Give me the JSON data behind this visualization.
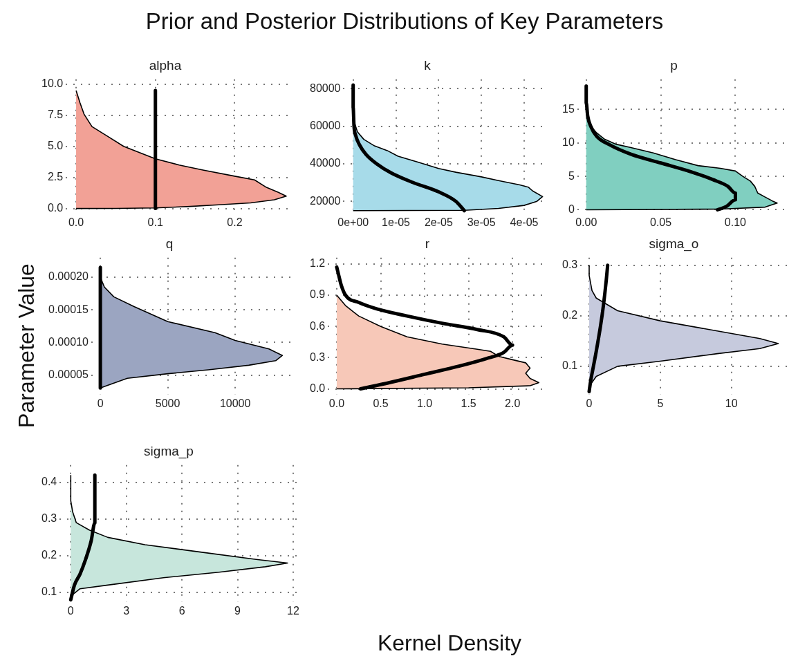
{
  "chart_data": [
    {
      "type": "other",
      "title": "Prior and Posterior Distributions of Key Parameters",
      "xlabel": "Kernel Density",
      "ylabel": "Parameter Value"
    },
    {
      "type": "area",
      "title": "alpha",
      "grid": true,
      "xlim": [
        -0.013,
        0.272
      ],
      "ylim": [
        -0.4,
        10.4
      ],
      "xticks": [
        {
          "value": 0,
          "label": "0.0"
        },
        {
          "value": 0.1,
          "label": "0.1"
        },
        {
          "value": 0.2,
          "label": "0.2"
        }
      ],
      "yticks": [
        {
          "value": 0,
          "label": "0.0"
        },
        {
          "value": 2.5,
          "label": "2.5"
        },
        {
          "value": 5,
          "label": "5.0"
        },
        {
          "value": 7.5,
          "label": "7.5"
        },
        {
          "value": 10,
          "label": "10.0"
        }
      ],
      "series": [
        {
          "type": "area",
          "color": "#f2a196",
          "x": [
            0,
            0.05,
            0.1,
            0.14,
            0.18,
            0.22,
            0.25,
            0.265,
            0.255,
            0.24,
            0.225,
            0.2,
            0.16,
            0.13,
            0.1,
            0.08,
            0.06,
            0.04,
            0.02,
            0.01,
            0.005,
            0
          ],
          "values": [
            0,
            0.01,
            0.05,
            0.15,
            0.3,
            0.45,
            0.7,
            1.0,
            1.3,
            1.7,
            2.3,
            2.6,
            3.1,
            3.5,
            4.0,
            4.5,
            5.0,
            5.8,
            6.6,
            7.6,
            8.5,
            9.5
          ]
        },
        {
          "type": "line",
          "color": "#000000",
          "x": [
            0.1,
            0.1
          ],
          "values": [
            0,
            9.5
          ]
        }
      ]
    },
    {
      "type": "area",
      "title": "k",
      "grid": true,
      "xlim": [
        -2.3e-06,
        4.55e-05
      ],
      "ylim": [
        13500,
        85000
      ],
      "xticks": [
        {
          "value": 0,
          "label": "0e+00"
        },
        {
          "value": 1e-05,
          "label": "1e-05"
        },
        {
          "value": 2e-05,
          "label": "2e-05"
        },
        {
          "value": 3e-05,
          "label": "3e-05"
        },
        {
          "value": 4e-05,
          "label": "4e-05"
        }
      ],
      "yticks": [
        20000,
        40000,
        60000,
        80000
      ],
      "series": [
        {
          "type": "area",
          "color": "#a7dbe9",
          "x": [
            0,
            2.6e-05,
            3.4e-05,
            4e-05,
            4.3e-05,
            4.43e-05,
            4.2e-05,
            4.1e-05,
            3.9e-05,
            3.4e-05,
            3e-05,
            2.4e-05,
            2e-05,
            1.5e-05,
            1.05e-05,
            8e-06,
            5e-06,
            2.5e-06,
            1e-06,
            3e-07,
            0,
            0
          ],
          "values": [
            15000,
            15200,
            16200,
            17800,
            20000,
            22500,
            25500,
            27500,
            28700,
            31000,
            33000,
            35500,
            37500,
            41000,
            44000,
            47000,
            49500,
            53000,
            57000,
            62000,
            70000,
            80000
          ]
        },
        {
          "type": "line",
          "color": "#000000",
          "x": [
            2.6e-05,
            2.4e-05,
            2e-05,
            1.4e-05,
            9e-06,
            5.5e-06,
            3e-06,
            1.5e-06,
            6e-07,
            2e-07,
            0,
            0
          ],
          "values": [
            15000,
            20000,
            25000,
            30000,
            35000,
            40000,
            45000,
            50000,
            55000,
            60000,
            70000,
            82000
          ]
        }
      ]
    },
    {
      "type": "area",
      "title": "p",
      "grid": true,
      "xlim": [
        -0.006,
        0.1355
      ],
      "ylim": [
        -0.55,
        19.5
      ],
      "xticks": [
        {
          "value": 0,
          "label": "0.00"
        },
        {
          "value": 0.05,
          "label": "0.05"
        },
        {
          "value": 0.1,
          "label": "0.10"
        }
      ],
      "yticks": [
        0,
        5,
        10,
        15
      ],
      "series": [
        {
          "type": "area",
          "color": "#80cfc0",
          "x": [
            0,
            0.09,
            0.12,
            0.128,
            0.125,
            0.12,
            0.115,
            0.113,
            0.11,
            0.105,
            0.1,
            0.09,
            0.075,
            0.06,
            0.045,
            0.03,
            0.02,
            0.012,
            0.007,
            0.003,
            0.001,
            0,
            0
          ],
          "values": [
            0,
            0.1,
            0.4,
            1.0,
            1.3,
            1.9,
            2.5,
            3.5,
            4.3,
            5.0,
            5.8,
            6.2,
            6.6,
            7.5,
            8.5,
            9.3,
            9.8,
            10.6,
            11.5,
            12.5,
            14,
            16,
            18.5
          ]
        },
        {
          "type": "line",
          "color": "#000000",
          "x": [
            0.088,
            0.094,
            0.1,
            0.1,
            0.095,
            0.085,
            0.07,
            0.05,
            0.03,
            0.015,
            0.007,
            0.003,
            0.001,
            0,
            0
          ],
          "values": [
            0,
            0.5,
            1.5,
            2.5,
            3.5,
            4.5,
            5.7,
            7,
            8.3,
            9.8,
            11,
            12.5,
            14,
            16,
            18.5
          ]
        }
      ]
    },
    {
      "type": "area",
      "title": "q",
      "grid": true,
      "xlim": [
        -680,
        14300
      ],
      "ylim": [
        2e-05,
        0.00023
      ],
      "xticks": [
        0,
        5000,
        10000
      ],
      "yticks": [
        {
          "value": 5e-05,
          "label": "0.00005"
        },
        {
          "value": 0.0001,
          "label": "0.00010"
        },
        {
          "value": 0.00015,
          "label": "0.00015"
        },
        {
          "value": 0.0002,
          "label": "0.00020"
        }
      ],
      "series": [
        {
          "type": "area",
          "color": "#9ba5c1",
          "x": [
            0,
            2000,
            5000,
            8000,
            11000,
            13000,
            13500,
            12500,
            10000,
            8500,
            5000,
            2500,
            1000,
            300,
            0,
            0
          ],
          "values": [
            3e-05,
            4.5e-05,
            5.2e-05,
            5.8e-05,
            6.5e-05,
            7.2e-05,
            8e-05,
            9e-05,
            0.000103,
            0.000115,
            0.000132,
            0.000155,
            0.00017,
            0.000185,
            0.0002,
            0.000215
          ]
        },
        {
          "type": "line",
          "color": "#000000",
          "x": [
            0,
            0
          ],
          "values": [
            3e-05,
            0.000215
          ]
        }
      ]
    },
    {
      "type": "area",
      "title": "r",
      "grid": true,
      "xlim": [
        -0.1,
        2.4
      ],
      "ylim": [
        -0.055,
        1.26
      ],
      "xticks": [
        {
          "value": 0,
          "label": "0.0"
        },
        {
          "value": 0.5,
          "label": "0.5"
        },
        {
          "value": 1,
          "label": "1.0"
        },
        {
          "value": 1.5,
          "label": "1.5"
        },
        {
          "value": 2,
          "label": "2.0"
        }
      ],
      "yticks": [
        {
          "value": 0,
          "label": "0.0"
        },
        {
          "value": 0.3,
          "label": "0.3"
        },
        {
          "value": 0.6,
          "label": "0.6"
        },
        {
          "value": 0.9,
          "label": "0.9"
        },
        {
          "value": 1.2,
          "label": "1.2"
        }
      ],
      "series": [
        {
          "type": "area",
          "color": "#f7c8b8",
          "x": [
            0,
            1.5,
            2.2,
            2.3,
            2.2,
            2.15,
            2.2,
            2.15,
            2.0,
            1.85,
            1.75,
            1.6,
            1.2,
            0.8,
            0.5,
            0.25,
            0.1,
            0.03,
            0
          ],
          "values": [
            0,
            0.01,
            0.03,
            0.06,
            0.1,
            0.15,
            0.2,
            0.25,
            0.28,
            0.31,
            0.36,
            0.38,
            0.43,
            0.5,
            0.6,
            0.7,
            0.8,
            0.87,
            0.9
          ]
        },
        {
          "type": "line",
          "color": "#000000",
          "x": [
            0.27,
            0.6,
            1.0,
            1.4,
            1.7,
            1.9,
            2.0,
            1.9,
            1.6,
            1.2,
            0.8,
            0.45,
            0.25,
            0.1,
            0.05,
            0.02,
            0
          ],
          "values": [
            0,
            0.06,
            0.14,
            0.22,
            0.29,
            0.35,
            0.42,
            0.5,
            0.57,
            0.63,
            0.7,
            0.77,
            0.83,
            0.9,
            1.0,
            1.1,
            1.17
          ]
        }
      ]
    },
    {
      "type": "area",
      "title": "sigma_o",
      "grid": true,
      "xlim": [
        -0.62,
        14
      ],
      "ylim": [
        0.044,
        0.315
      ],
      "xticks": [
        0,
        5,
        10
      ],
      "yticks": [
        0.1,
        0.2,
        0.3
      ],
      "series": [
        {
          "type": "area",
          "color": "#c6cadd",
          "x": [
            0,
            0.5,
            2,
            5,
            9,
            12,
            13.3,
            12,
            9,
            5,
            2,
            0.5,
            0.2,
            0,
            0
          ],
          "values": [
            0.06,
            0.08,
            0.1,
            0.11,
            0.125,
            0.135,
            0.145,
            0.155,
            0.17,
            0.19,
            0.21,
            0.235,
            0.25,
            0.28,
            0.3
          ]
        },
        {
          "type": "line",
          "color": "#000000",
          "x": [
            0,
            0.1,
            0.3,
            0.5,
            0.8,
            1.0,
            1.2,
            1.3
          ],
          "values": [
            0.05,
            0.07,
            0.1,
            0.13,
            0.18,
            0.22,
            0.27,
            0.3
          ]
        }
      ]
    },
    {
      "type": "area",
      "title": "sigma_p",
      "grid": true,
      "xlim": [
        -0.6,
        12.3
      ],
      "ylim": [
        0.074,
        0.447
      ],
      "xticks": [
        0,
        3,
        6,
        9,
        12
      ],
      "yticks": [
        0.1,
        0.2,
        0.3,
        0.4
      ],
      "series": [
        {
          "type": "area",
          "color": "#c7e6dc",
          "x": [
            0,
            0.5,
            2,
            5,
            8,
            10.5,
            11.7,
            10,
            7,
            4,
            2,
            1,
            0.3,
            0.1,
            0,
            0
          ],
          "values": [
            0.09,
            0.11,
            0.12,
            0.14,
            0.155,
            0.17,
            0.18,
            0.19,
            0.21,
            0.23,
            0.25,
            0.27,
            0.29,
            0.32,
            0.35,
            0.42
          ]
        },
        {
          "type": "line",
          "color": "#000000",
          "x": [
            0,
            0.2,
            0.5,
            0.8,
            1.1,
            1.3,
            1.3,
            1.3
          ],
          "values": [
            0.08,
            0.12,
            0.15,
            0.19,
            0.24,
            0.29,
            0.36,
            0.42
          ]
        }
      ]
    }
  ]
}
